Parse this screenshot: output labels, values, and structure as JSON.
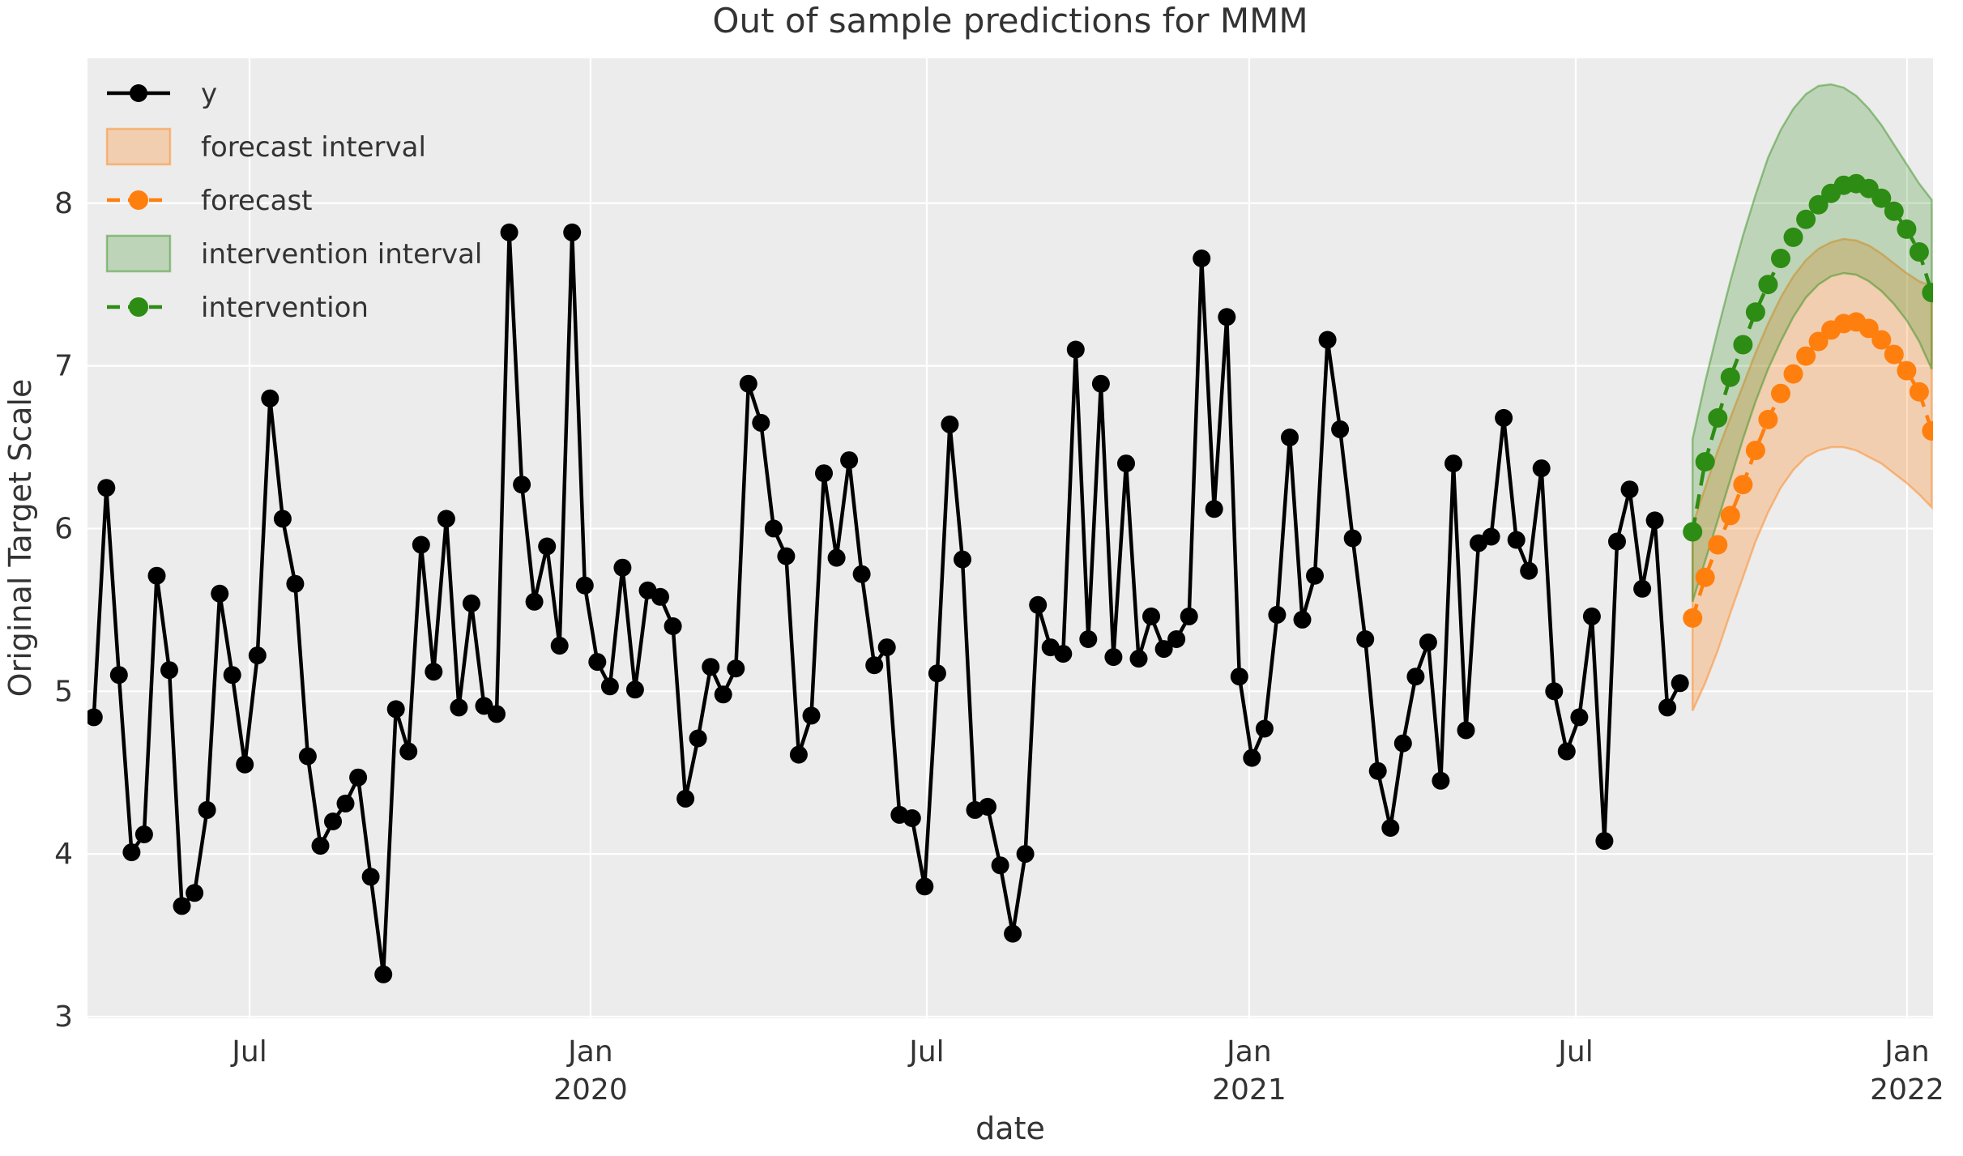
{
  "title": "Out of sample predictions for MMM",
  "axes": {
    "xlabel": "date",
    "ylabel": "Original Target Scale"
  },
  "legend": {
    "position": "upper left",
    "items": [
      {
        "label": "y",
        "kind": "line-marker",
        "color": "#000000"
      },
      {
        "label": "forecast interval",
        "kind": "patch",
        "color": "#ff7f0e"
      },
      {
        "label": "forecast",
        "kind": "dashed-marker",
        "color": "#ff7f0e"
      },
      {
        "label": "intervention interval",
        "kind": "patch",
        "color": "#2d8c14"
      },
      {
        "label": "intervention",
        "kind": "dashed-marker",
        "color": "#2d8c14"
      }
    ]
  },
  "colors": {
    "figure_bg": "#ffffff",
    "axes_bg": "#ececec",
    "grid": "#ffffff",
    "y_series": "#000000",
    "forecast": "#ff7f0e",
    "forecast_band_fill": "rgba(255,127,14,0.27)",
    "forecast_band_edge": "rgba(255,127,14,0.45)",
    "intervention": "#2d8c14",
    "intervention_band_fill": "rgba(45,140,20,0.24)",
    "intervention_band_edge": "rgba(45,140,20,0.45)",
    "text": "#333333"
  },
  "chart_data": {
    "type": "line",
    "title": "Out of sample predictions for MMM",
    "xlabel": "date",
    "ylabel": "Original Target Scale",
    "grid": true,
    "legend_position": "upper left",
    "x_unit": "weeks (weekly observations, ~Apr 2019 through Jan 2022)",
    "xlim": [
      -0.5,
      146.1
    ],
    "ylim": [
      2.99,
      8.89
    ],
    "y_ticks": [
      3,
      4,
      5,
      6,
      7,
      8
    ],
    "x_ticks": [
      {
        "t": 12.37,
        "label": "Jul"
      },
      {
        "t": 39.46,
        "label": "Jan",
        "year": "2020"
      },
      {
        "t": 66.17,
        "label": "Jul"
      },
      {
        "t": 91.78,
        "label": "Jan",
        "year": "2021"
      },
      {
        "t": 117.72,
        "label": "Jul"
      },
      {
        "t": 144.04,
        "label": "Jan",
        "year": "2022"
      }
    ],
    "series": [
      {
        "name": "y",
        "style": "solid-marker",
        "t_start": 0,
        "t_step": 1,
        "values": [
          4.84,
          6.25,
          5.1,
          4.01,
          4.12,
          5.71,
          5.13,
          3.68,
          3.76,
          4.27,
          5.6,
          5.1,
          4.55,
          5.22,
          6.8,
          6.06,
          5.66,
          4.6,
          4.05,
          4.2,
          4.31,
          4.47,
          3.86,
          3.26,
          4.89,
          4.63,
          5.9,
          5.12,
          6.06,
          4.9,
          5.54,
          4.91,
          4.86,
          7.82,
          6.27,
          5.55,
          5.89,
          5.28,
          7.82,
          5.65,
          5.18,
          5.03,
          5.76,
          5.01,
          5.62,
          5.58,
          5.4,
          4.34,
          4.71,
          5.15,
          4.98,
          5.14,
          6.89,
          6.65,
          6.0,
          5.83,
          4.61,
          4.85,
          6.34,
          5.82,
          6.42,
          5.72,
          5.16,
          5.27,
          4.24,
          4.22,
          3.8,
          5.11,
          6.64,
          5.81,
          4.27,
          4.29,
          3.93,
          3.51,
          4.0,
          5.53,
          5.27,
          5.23,
          7.1,
          5.32,
          6.89,
          5.21,
          6.4,
          5.2,
          5.46,
          5.26,
          5.32,
          5.46,
          7.66,
          6.12,
          7.3,
          5.09,
          4.59,
          4.77,
          5.47,
          6.56,
          5.44,
          5.71,
          7.16,
          6.61,
          5.94,
          5.32,
          4.51,
          4.16,
          4.68,
          5.09,
          5.3,
          4.45,
          6.4,
          4.76,
          5.91,
          5.95,
          6.68,
          5.93,
          5.74,
          6.37,
          5.0,
          4.63,
          4.84,
          5.46,
          4.08,
          5.92,
          6.24,
          5.63,
          6.05,
          4.9,
          5.05
        ]
      },
      {
        "name": "forecast",
        "style": "dashed-marker",
        "interval_name": "forecast interval",
        "t_start": 127,
        "t_step": 1,
        "values": [
          5.45,
          5.7,
          5.9,
          6.08,
          6.27,
          6.48,
          6.67,
          6.83,
          6.95,
          7.06,
          7.15,
          7.22,
          7.26,
          7.27,
          7.23,
          7.16,
          7.07,
          6.97,
          6.84,
          6.6
        ],
        "lower": [
          4.88,
          5.05,
          5.25,
          5.48,
          5.7,
          5.92,
          6.1,
          6.25,
          6.36,
          6.44,
          6.48,
          6.5,
          6.5,
          6.48,
          6.44,
          6.4,
          6.34,
          6.28,
          6.21,
          6.13
        ],
        "upper": [
          6.02,
          6.25,
          6.48,
          6.68,
          6.88,
          7.08,
          7.26,
          7.42,
          7.55,
          7.65,
          7.72,
          7.76,
          7.78,
          7.77,
          7.74,
          7.69,
          7.63,
          7.57,
          7.52,
          7.49
        ]
      },
      {
        "name": "intervention",
        "style": "dashed-marker",
        "interval_name": "intervention interval",
        "t_start": 127,
        "t_step": 1,
        "values": [
          5.98,
          6.41,
          6.68,
          6.93,
          7.13,
          7.33,
          7.5,
          7.66,
          7.79,
          7.9,
          7.99,
          8.06,
          8.11,
          8.12,
          8.09,
          8.03,
          7.95,
          7.84,
          7.7,
          7.45
        ],
        "lower": [
          5.55,
          5.8,
          6.05,
          6.3,
          6.55,
          6.78,
          6.98,
          7.15,
          7.3,
          7.42,
          7.5,
          7.55,
          7.57,
          7.56,
          7.52,
          7.46,
          7.38,
          7.28,
          7.15,
          6.98
        ],
        "upper": [
          6.55,
          6.9,
          7.22,
          7.52,
          7.8,
          8.05,
          8.28,
          8.45,
          8.58,
          8.67,
          8.72,
          8.73,
          8.71,
          8.66,
          8.58,
          8.48,
          8.36,
          8.24,
          8.12,
          8.02
        ]
      }
    ]
  }
}
